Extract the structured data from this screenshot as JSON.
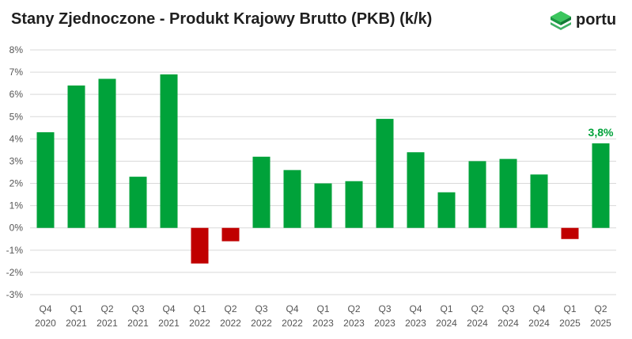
{
  "title": "Stany Zjednoczone - Produkt Krajowy Brutto (PKB) (k/k)",
  "brand": {
    "name": "portu",
    "color": "#1fa34a",
    "icon": "cube-logo-icon"
  },
  "colors": {
    "positive": "#00a23a",
    "negative": "#c00000",
    "grid": "#d9d9d9",
    "label": "#00a23a"
  },
  "chart_data": {
    "type": "bar",
    "title": "Stany Zjednoczone - Produkt Krajowy Brutto (PKB) (k/k)",
    "xlabel": "",
    "ylabel": "",
    "ylim": [
      -3,
      8
    ],
    "yticks": [
      8,
      7,
      6,
      5,
      4,
      3,
      2,
      1,
      0,
      -1,
      -2,
      -3
    ],
    "ytick_labels": [
      "8%",
      "7%",
      "6%",
      "5%",
      "4%",
      "3%",
      "2%",
      "1%",
      "0%",
      "-1%",
      "-2%",
      "-3%"
    ],
    "grid": true,
    "categories": [
      [
        "Q4",
        "2020"
      ],
      [
        "Q1",
        "2021"
      ],
      [
        "Q2",
        "2021"
      ],
      [
        "Q3",
        "2021"
      ],
      [
        "Q4",
        "2021"
      ],
      [
        "Q1",
        "2022"
      ],
      [
        "Q2",
        "2022"
      ],
      [
        "Q3",
        "2022"
      ],
      [
        "Q4",
        "2022"
      ],
      [
        "Q1",
        "2023"
      ],
      [
        "Q2",
        "2023"
      ],
      [
        "Q3",
        "2023"
      ],
      [
        "Q4",
        "2023"
      ],
      [
        "Q1",
        "2024"
      ],
      [
        "Q2",
        "2024"
      ],
      [
        "Q3",
        "2024"
      ],
      [
        "Q4",
        "2024"
      ],
      [
        "Q1",
        "2025"
      ],
      [
        "Q2",
        "2025"
      ]
    ],
    "values": [
      4.3,
      6.4,
      6.7,
      2.3,
      6.9,
      -1.6,
      -0.6,
      3.2,
      2.6,
      2.0,
      2.1,
      4.9,
      3.4,
      1.6,
      3.0,
      3.1,
      2.4,
      -0.5,
      3.8
    ],
    "annotations": [
      {
        "index": 18,
        "text": "3,8%"
      }
    ]
  }
}
